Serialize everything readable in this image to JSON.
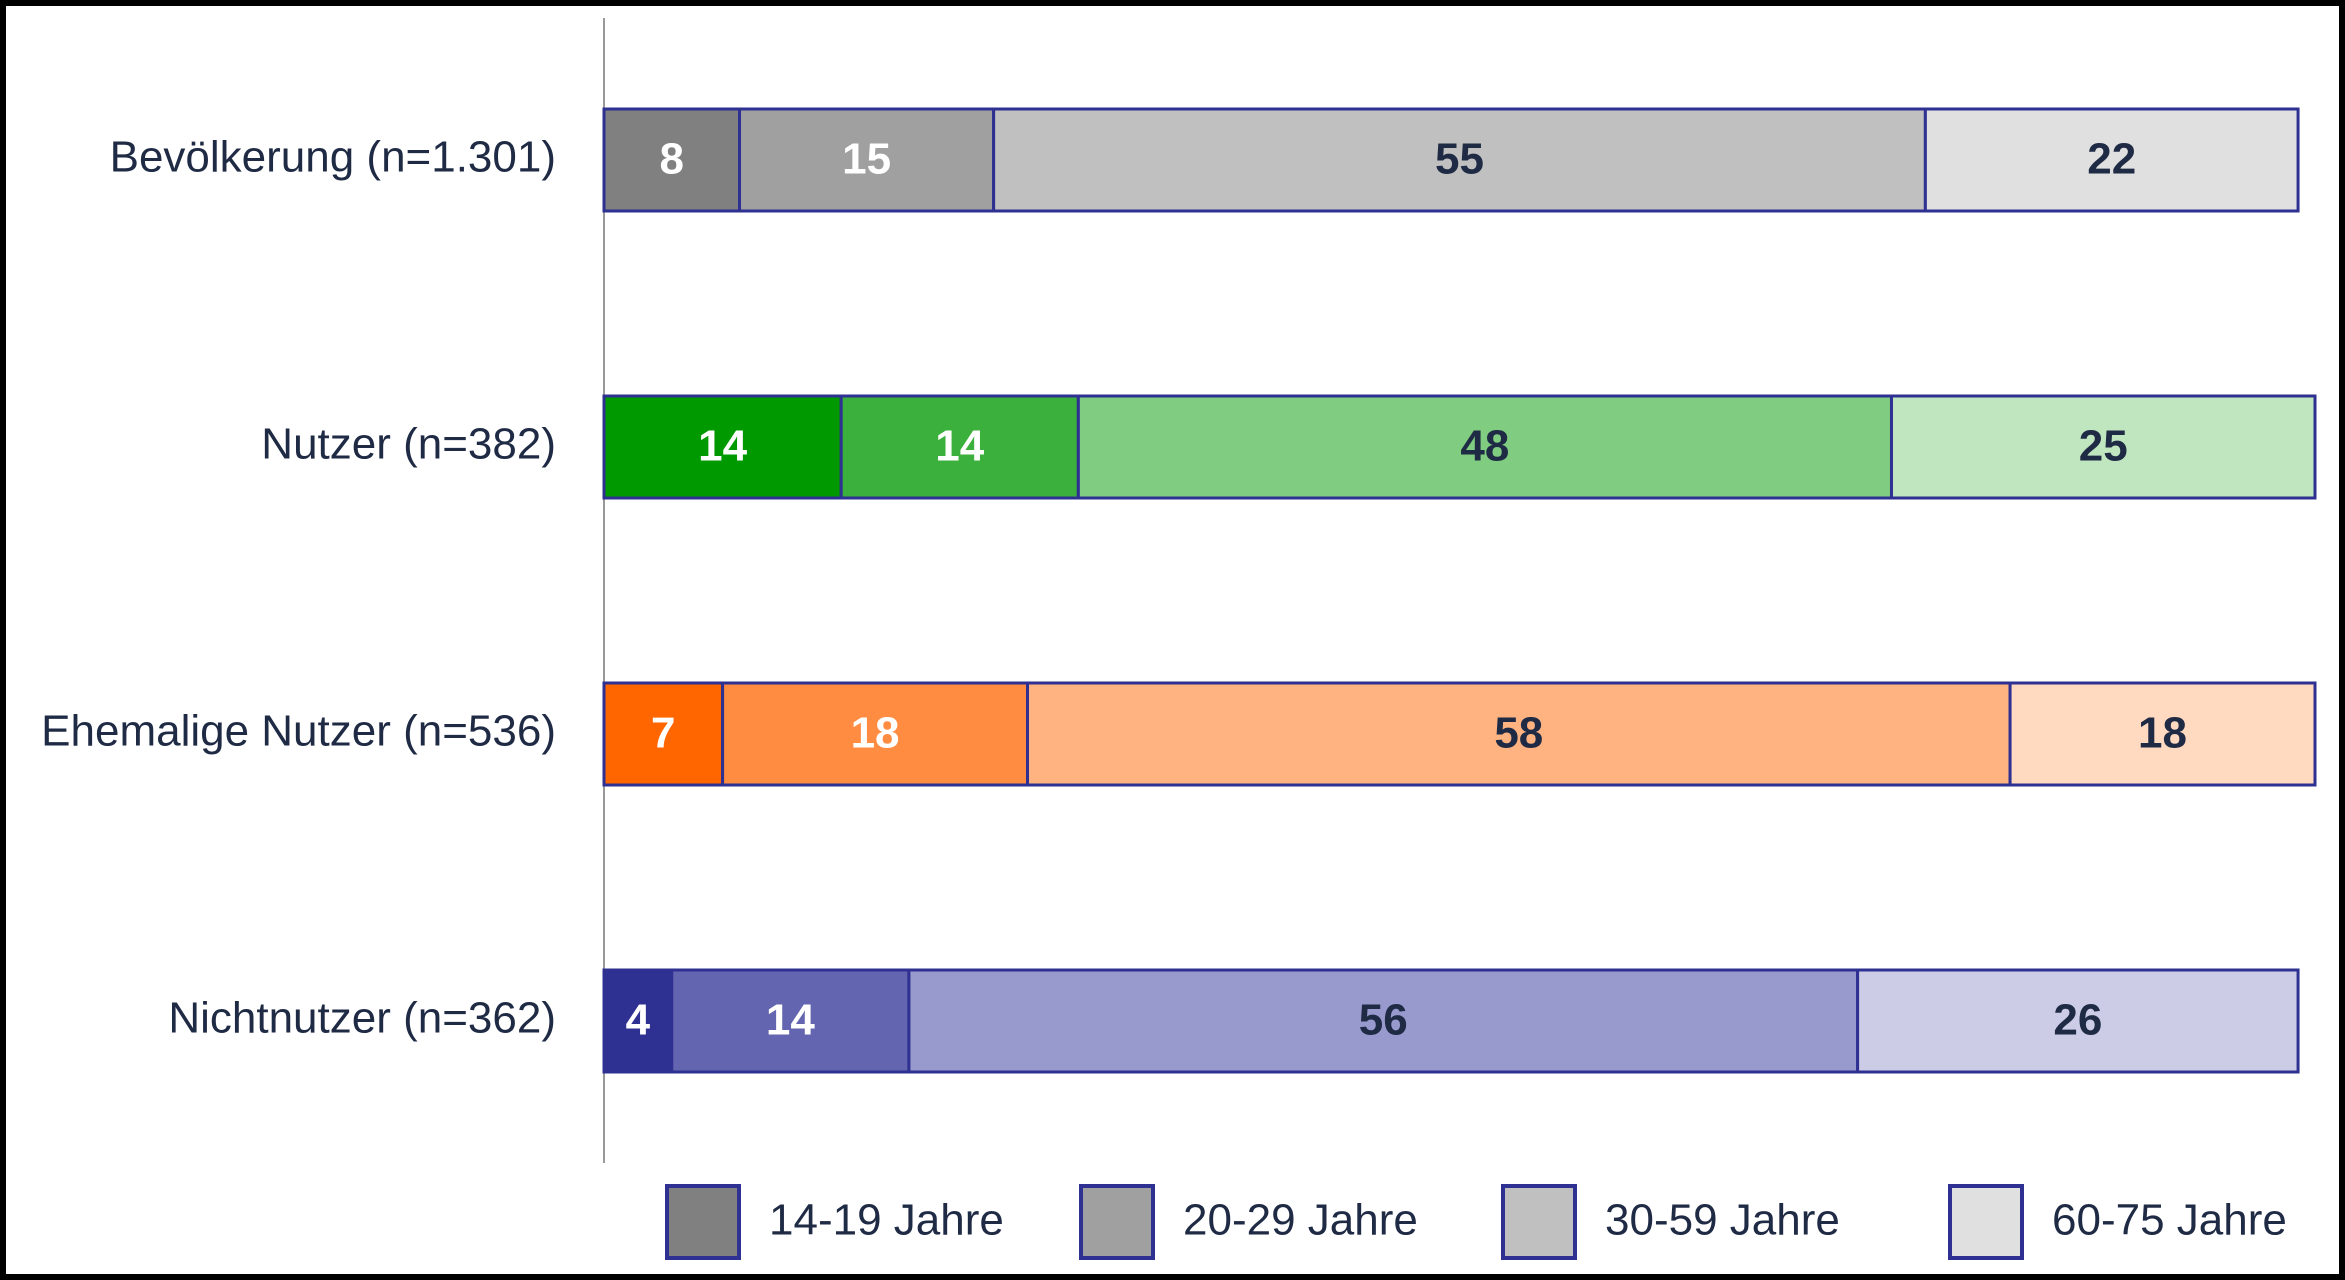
{
  "chart_data": {
    "type": "stacked_barh",
    "categories": [
      "Bevölkerung (n=1.301)",
      "Nutzer (n=382)",
      "Ehemalige Nutzer (n=536)",
      "Nichtnutzer (n=362)"
    ],
    "series": [
      {
        "name": "14-19 Jahre",
        "color": "#808080",
        "values": [
          8,
          14,
          7,
          4
        ],
        "colors": [
          "#808080",
          "#009a00",
          "#ff6600",
          "#2e3192"
        ],
        "label_color": "#ffffff"
      },
      {
        "name": "20-29 Jahre",
        "color": "#a0a0a0",
        "values": [
          15,
          14,
          18,
          14
        ],
        "colors": [
          "#a0a0a0",
          "#3cb03c",
          "#ff8c40",
          "#6465b0"
        ],
        "label_color": "#ffffff"
      },
      {
        "name": "30-59 Jahre",
        "color": "#c0c0c0",
        "values": [
          55,
          48,
          58,
          56
        ],
        "colors": [
          "#c0c0c0",
          "#80cc80",
          "#ffb380",
          "#9899cc"
        ],
        "label_color": "#1f2a44"
      },
      {
        "name": "60-75 Jahre",
        "color": "#e0e0e0",
        "values": [
          22,
          25,
          18,
          26
        ],
        "colors": [
          "#e0e0e0",
          "#c0e6c0",
          "#ffd9c0",
          "#cccce6"
        ],
        "label_color": "#1f2a44"
      }
    ],
    "xlim": [
      0,
      101
    ],
    "edge_color": "#2e3192",
    "legend": "bottom"
  }
}
